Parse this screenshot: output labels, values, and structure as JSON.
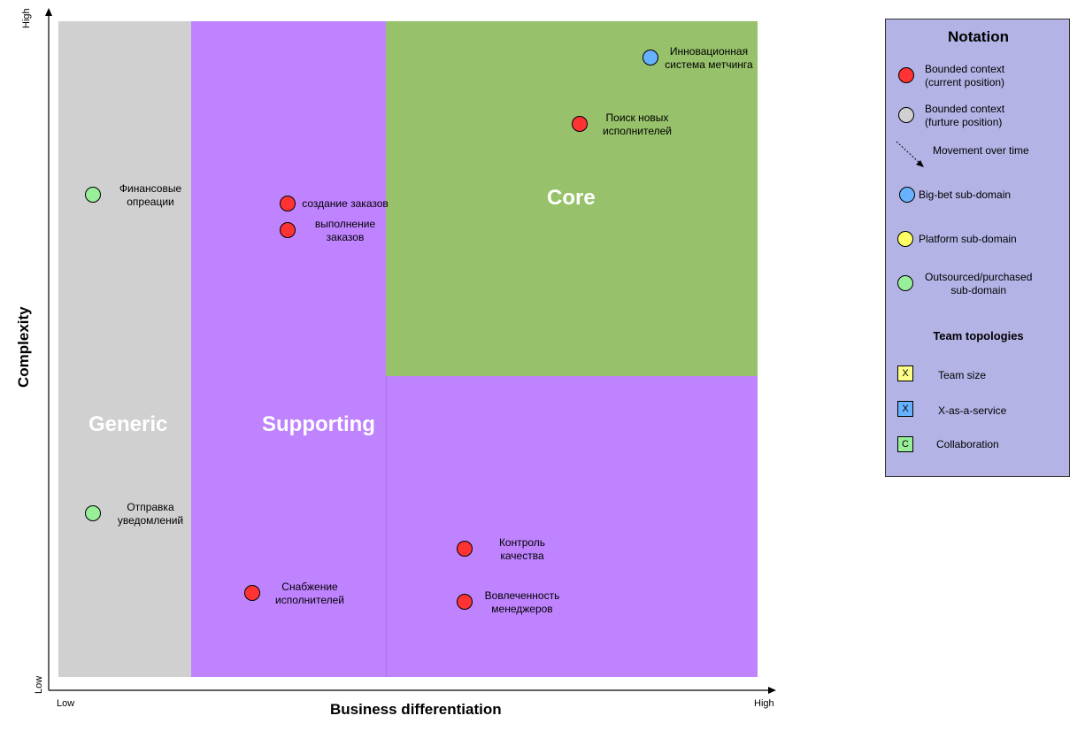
{
  "axes": {
    "x_title": "Business differentiation",
    "y_title": "Complexity",
    "x_low": "Low",
    "x_high": "High",
    "y_low": "Low",
    "y_high": "High"
  },
  "regions": {
    "generic": {
      "label": "Generic",
      "color": "#d0d0d0"
    },
    "supporting": {
      "label": "Supporting",
      "color": "#bf83ff"
    },
    "core": {
      "label": "Core",
      "color": "#97c26b"
    }
  },
  "contexts": [
    {
      "label_line1": "Инновационная",
      "label_line2": "система метчинга",
      "type": "big-bet",
      "color": "#66b2ff"
    },
    {
      "label_line1": "Поиск новых",
      "label_line2": "исполнителей",
      "type": "current",
      "color": "#ff3333"
    },
    {
      "label_line1": "Финансовые",
      "label_line2": "опреации",
      "type": "outsourced",
      "color": "#99ee99"
    },
    {
      "label_line1": "создание заказов",
      "label_line2": "",
      "type": "current",
      "color": "#ff3333"
    },
    {
      "label_line1": "выполнение",
      "label_line2": "заказов",
      "type": "current",
      "color": "#ff3333"
    },
    {
      "label_line1": "Отправка",
      "label_line2": "уведомлений",
      "type": "outsourced",
      "color": "#99ee99"
    },
    {
      "label_line1": "Контроль",
      "label_line2": "качества",
      "type": "current",
      "color": "#ff3333"
    },
    {
      "label_line1": "Снабжение",
      "label_line2": "исполнителей",
      "type": "current",
      "color": "#ff3333"
    },
    {
      "label_line1": "Вовлеченность",
      "label_line2": "менеджеров",
      "type": "current",
      "color": "#ff3333"
    }
  ],
  "legend": {
    "title": "Notation",
    "items": [
      {
        "line1": "Bounded context",
        "line2": "(current position)",
        "color": "#ff3333"
      },
      {
        "line1": "Bounded context",
        "line2": "(furture position)",
        "color": "#d0d0d0"
      },
      {
        "line1": "Movement over time",
        "line2": ""
      },
      {
        "line1": "Big-bet sub-domain",
        "line2": "",
        "color": "#66b2ff"
      },
      {
        "line1": "Platform sub-domain",
        "line2": "",
        "color": "#ffff66"
      },
      {
        "line1": "Outsourced/purchased",
        "line2": "sub-domain",
        "color": "#99ee99"
      }
    ],
    "team_title": "Team topologies",
    "team_items": [
      {
        "mark": "X",
        "text": "Team size",
        "color": "#ffff88"
      },
      {
        "mark": "X",
        "text": "X-as-a-service",
        "color": "#66b2ff"
      },
      {
        "mark": "C",
        "text": "Collaboration",
        "color": "#99ee99"
      }
    ]
  }
}
